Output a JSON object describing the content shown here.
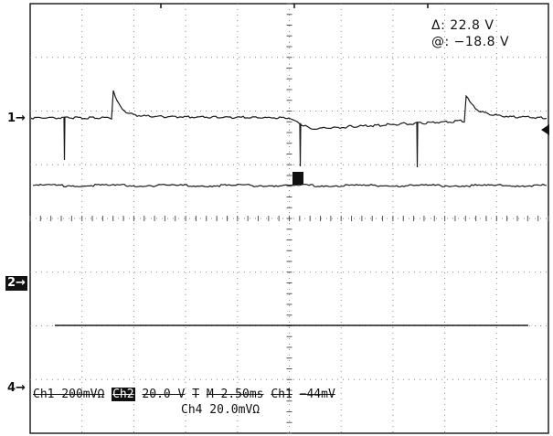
{
  "cursor_readout": {
    "delta": "Δ: 22.8 V",
    "at": "@: −18.8 V"
  },
  "markers": {
    "ch1": "1",
    "ch2": "2",
    "ch4": "4",
    "trigger": "T"
  },
  "status": {
    "ch1_scale": "Ch1  200mVΩ",
    "ch2_label": "Ch2",
    "ch2_scale": "20.0 V",
    "timebase": "M 2.50ms",
    "trigger_src": "Ch1",
    "trigger_level": "−44mV",
    "ch4_scale": "Ch4  20.0mVΩ"
  },
  "colors": {
    "trace": "#1a1a1a",
    "grid": "#8a8a8a",
    "background": "#ffffff"
  }
}
